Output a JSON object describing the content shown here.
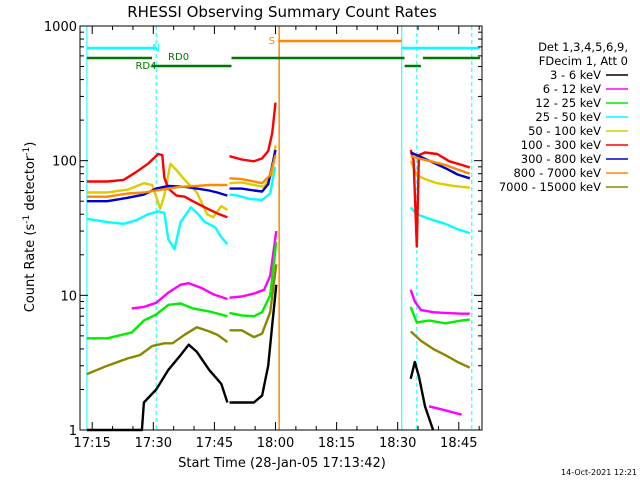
{
  "chart_data": {
    "type": "line",
    "title": "RHESSI Observing Summary Count Rates",
    "xlabel": "Start Time (28-Jan-05 17:13:42)",
    "ylabel_main": "Count Rate (s",
    "ylabel_sup1": "-1",
    "ylabel_mid": " detector",
    "ylabel_sup2": "-1",
    "ylabel_end": ")",
    "yscale": "log",
    "ylim": [
      1,
      1000
    ],
    "xlim_minutes": [
      -1.7,
      97
    ],
    "x_ticks": [
      {
        "label": "17:15",
        "min": 1.3
      },
      {
        "label": "17:30",
        "min": 16.3
      },
      {
        "label": "17:45",
        "min": 31.3
      },
      {
        "label": "18:00",
        "min": 46.3
      },
      {
        "label": "18:15",
        "min": 61.3
      },
      {
        "label": "18:30",
        "min": 76.3
      },
      {
        "label": "18:45",
        "min": 91.3
      }
    ],
    "y_ticks": [
      {
        "label": "1",
        "value": 1
      },
      {
        "label": "10",
        "value": 10
      },
      {
        "label": "100",
        "value": 100
      },
      {
        "label": "1000",
        "value": 1000
      }
    ],
    "legend_header": [
      "Det 1,3,4,5,6,9,",
      "FDecim 1, Att 0"
    ],
    "series": [
      {
        "name": "3 - 6 keV",
        "color": "#000000",
        "segments": [
          [
            [
              0,
              1
            ],
            [
              13.5,
              1
            ],
            [
              14,
              1.6
            ],
            [
              17,
              2
            ],
            [
              20,
              2.8
            ],
            [
              23,
              3.6
            ],
            [
              25,
              4.3
            ],
            [
              27,
              3.8
            ],
            [
              30,
              2.8
            ],
            [
              33,
              2.2
            ],
            [
              34.5,
              1.6
            ]
          ],
          [
            [
              35,
              1.6
            ],
            [
              39,
              1.6
            ],
            [
              41,
              1.6
            ],
            [
              43,
              1.8
            ],
            [
              44.5,
              3
            ],
            [
              45.5,
              6
            ],
            [
              46.5,
              12
            ]
          ],
          [
            [
              79.5,
              2.4
            ],
            [
              80.5,
              3.2
            ],
            [
              81.5,
              2.5
            ],
            [
              83,
              1.5
            ],
            [
              85,
              1
            ]
          ]
        ]
      },
      {
        "name": "6 - 12 keV",
        "color": "#ff00ff",
        "segments": [
          [
            [
              11,
              8
            ],
            [
              14,
              8.2
            ],
            [
              17,
              8.8
            ],
            [
              20,
              10.5
            ],
            [
              23,
              12
            ],
            [
              25,
              12.3
            ],
            [
              28,
              11.4
            ],
            [
              31,
              10.2
            ],
            [
              34.5,
              9.4
            ]
          ],
          [
            [
              35,
              9.6
            ],
            [
              38,
              9.8
            ],
            [
              41,
              10.3
            ],
            [
              43.5,
              11
            ],
            [
              45,
              14
            ],
            [
              46.5,
              30
            ]
          ],
          [
            [
              79.5,
              11
            ],
            [
              80.5,
              9
            ],
            [
              82,
              7.8
            ],
            [
              85,
              7.5
            ],
            [
              88,
              7.4
            ],
            [
              92,
              7.3
            ],
            [
              94,
              7.3
            ]
          ],
          [
            [
              84,
              1.5
            ],
            [
              88,
              1.4
            ],
            [
              92,
              1.3
            ]
          ]
        ]
      },
      {
        "name": "12 - 25 keV",
        "color": "#00ee00",
        "segments": [
          [
            [
              0,
              4.8
            ],
            [
              5,
              4.8
            ],
            [
              11,
              5.3
            ],
            [
              14,
              6.5
            ],
            [
              17,
              7.2
            ],
            [
              20,
              8.5
            ],
            [
              23,
              8.7
            ],
            [
              26,
              8
            ],
            [
              30,
              7.6
            ],
            [
              34.5,
              7
            ]
          ],
          [
            [
              35,
              7.4
            ],
            [
              38,
              7.1
            ],
            [
              41,
              7
            ],
            [
              43,
              7.5
            ],
            [
              45,
              10
            ],
            [
              46.5,
              25
            ]
          ],
          [
            [
              79.5,
              8.2
            ],
            [
              81,
              6.3
            ],
            [
              84,
              6.5
            ],
            [
              88,
              6.2
            ],
            [
              92,
              6.5
            ],
            [
              94,
              6.6
            ]
          ]
        ]
      },
      {
        "name": "25 - 50 keV",
        "color": "#00ffff",
        "segments": [
          [
            [
              0,
              37
            ],
            [
              5,
              35
            ],
            [
              9,
              34
            ],
            [
              12,
              36
            ],
            [
              15,
              40
            ],
            [
              17.5,
              42
            ],
            [
              19,
              41
            ],
            [
              20,
              26
            ],
            [
              21.5,
              22
            ],
            [
              23,
              35
            ],
            [
              25.5,
              45
            ],
            [
              27,
              41
            ],
            [
              29,
              35
            ],
            [
              31.5,
              32
            ],
            [
              33,
              27
            ],
            [
              34.5,
              24
            ]
          ],
          [
            [
              35,
              56
            ],
            [
              37,
              55
            ],
            [
              40,
              52
            ],
            [
              43,
              51
            ],
            [
              45,
              57
            ],
            [
              46.2,
              90
            ]
          ],
          [
            [
              79.5,
              45
            ],
            [
              81,
              40
            ],
            [
              84,
              37
            ],
            [
              88,
              34
            ],
            [
              91,
              31
            ],
            [
              94,
              29
            ]
          ]
        ]
      },
      {
        "name": "50 - 100 keV",
        "color": "#ddcc00",
        "segments": [
          [
            [
              0,
              58
            ],
            [
              5,
              58
            ],
            [
              10,
              61
            ],
            [
              14,
              68
            ],
            [
              16,
              66
            ],
            [
              17,
              54
            ],
            [
              18,
              44
            ],
            [
              19,
              55
            ],
            [
              20.5,
              95
            ],
            [
              22,
              85
            ],
            [
              24,
              72
            ],
            [
              27,
              58
            ],
            [
              29.5,
              40
            ],
            [
              31,
              38
            ],
            [
              33,
              46
            ],
            [
              34.5,
              43
            ]
          ],
          [
            [
              35,
              68
            ],
            [
              38,
              69
            ],
            [
              41,
              66
            ],
            [
              43.5,
              64
            ],
            [
              45.5,
              80
            ],
            [
              46.3,
              130
            ]
          ],
          [
            [
              79.5,
              100
            ],
            [
              81,
              78
            ],
            [
              83,
              73
            ],
            [
              86,
              68
            ],
            [
              90,
              65
            ],
            [
              94,
              63
            ]
          ]
        ]
      },
      {
        "name": "100 - 300 keV",
        "color": "#ff0000",
        "segments": [
          [
            [
              0,
              70
            ],
            [
              5,
              70
            ],
            [
              9,
              72
            ],
            [
              12,
              82
            ],
            [
              15,
              95
            ],
            [
              17.5,
              112
            ],
            [
              18.5,
              110
            ],
            [
              19,
              75
            ],
            [
              20,
              62
            ],
            [
              22,
              55
            ],
            [
              24,
              54
            ],
            [
              26,
              50
            ],
            [
              29,
              45
            ],
            [
              31,
              42
            ],
            [
              32.5,
              40
            ],
            [
              34.5,
              38
            ]
          ],
          [
            [
              35,
              108
            ],
            [
              38,
              102
            ],
            [
              41,
              99
            ],
            [
              43,
              104
            ],
            [
              44.5,
              118
            ],
            [
              45.5,
              160
            ],
            [
              46.3,
              270
            ]
          ],
          [
            [
              79.5,
              120
            ],
            [
              80.2,
              100
            ],
            [
              81,
              23
            ],
            [
              81.5,
              110
            ],
            [
              83,
              115
            ],
            [
              86,
              112
            ],
            [
              89,
              99
            ],
            [
              92,
              93
            ],
            [
              94,
              89
            ]
          ]
        ]
      },
      {
        "name": "300 - 800 keV",
        "color": "#0000cc",
        "segments": [
          [
            [
              0,
              50
            ],
            [
              5,
              50
            ],
            [
              10,
              53
            ],
            [
              14,
              56
            ],
            [
              17,
              62
            ],
            [
              20,
              65
            ],
            [
              24,
              64
            ],
            [
              27,
              62
            ],
            [
              30,
              60
            ],
            [
              32,
              58
            ],
            [
              34.5,
              55
            ]
          ],
          [
            [
              35,
              62
            ],
            [
              38,
              62
            ],
            [
              41,
              60
            ],
            [
              43,
              59
            ],
            [
              44.5,
              67
            ],
            [
              45.5,
              92
            ],
            [
              46.3,
              120
            ]
          ],
          [
            [
              79.5,
              115
            ],
            [
              81,
              110
            ],
            [
              84,
              100
            ],
            [
              88,
              88
            ],
            [
              91,
              79
            ],
            [
              94,
              74
            ]
          ]
        ]
      },
      {
        "name": "800 - 7000 keV",
        "color": "#ff8800",
        "segments": [
          [
            [
              0,
              54
            ],
            [
              5,
              54
            ],
            [
              10,
              57
            ],
            [
              14,
              58
            ],
            [
              17,
              60
            ],
            [
              20,
              62
            ],
            [
              23,
              64
            ],
            [
              27,
              65
            ],
            [
              30,
              66
            ],
            [
              34.5,
              66
            ]
          ],
          [
            [
              35,
              74
            ],
            [
              38,
              73
            ],
            [
              41,
              70
            ],
            [
              43,
              68
            ],
            [
              45,
              78
            ],
            [
              46.3,
              110
            ]
          ],
          [
            [
              79.5,
              108
            ],
            [
              82,
              103
            ],
            [
              85,
              98
            ],
            [
              88,
              93
            ],
            [
              91,
              86
            ],
            [
              94,
              80
            ]
          ]
        ]
      },
      {
        "name": "7000 - 15000 keV",
        "color": "#888800",
        "segments": [
          [
            [
              0,
              2.6
            ],
            [
              5,
              3
            ],
            [
              10,
              3.4
            ],
            [
              13,
              3.6
            ],
            [
              16,
              4.2
            ],
            [
              19,
              4.4
            ],
            [
              21,
              4.4
            ],
            [
              24,
              5.1
            ],
            [
              27,
              5.8
            ],
            [
              30,
              5.4
            ],
            [
              32,
              5.1
            ],
            [
              34.5,
              4.5
            ]
          ],
          [
            [
              35,
              5.5
            ],
            [
              38,
              5.5
            ],
            [
              41,
              4.9
            ],
            [
              43,
              5.2
            ],
            [
              45,
              7.5
            ],
            [
              46.5,
              17
            ]
          ],
          [
            [
              79.5,
              5.4
            ],
            [
              82,
              4.6
            ],
            [
              85,
              4
            ],
            [
              88,
              3.6
            ],
            [
              91,
              3.2
            ],
            [
              94,
              2.9
            ]
          ]
        ]
      }
    ],
    "annotations": {
      "labels": [
        {
          "text": "N",
          "min": 17,
          "color": "#00ffff"
        },
        {
          "text": "RD0",
          "min": 22.5,
          "color": "#007700"
        },
        {
          "text": "RD4",
          "min": 14.5,
          "color": "#007700"
        },
        {
          "text": "S",
          "min": 45.4,
          "color": "#ff8800"
        }
      ],
      "night_bars": [
        [
          0,
          17
        ],
        [
          77.3,
          96.5
        ]
      ],
      "saa_bars": [
        [
          47,
          77.3
        ]
      ],
      "decim_bars": [
        [
          0,
          16
        ],
        [
          16,
          35.5
        ],
        [
          35.5,
          78
        ],
        [
          78,
          82
        ]
      ],
      "decim_bars_alt": [
        [
          82.5,
          96.5
        ]
      ],
      "cyan_vlines_solid": [
        0,
        77.3
      ],
      "cyan_vlines_dashed": [
        17,
        81,
        94.5
      ],
      "orange_vlines": [
        47.2
      ]
    },
    "footer_timestamp": "14-Oct-2021 12:21"
  }
}
